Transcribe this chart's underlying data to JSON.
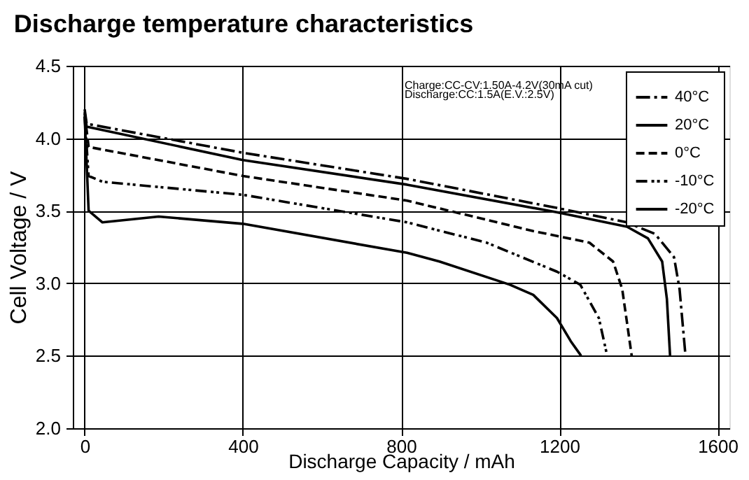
{
  "chart_data": {
    "type": "line",
    "title": "Discharge temperature characteristics",
    "xlabel": "Discharge Capacity  /  mAh",
    "ylabel": "Cell Voltage  /  V",
    "annotations": [
      "Charge:CC-CV:1.50A-4.2V(30mA cut)",
      "Discharge:CC:1.5A(E.V.:2.5V)"
    ],
    "xlim": [
      -30,
      1630
    ],
    "xticks": [
      0,
      400,
      800,
      1200,
      1600
    ],
    "ylim": [
      2.0,
      4.5
    ],
    "yticks": [
      {
        "value": 2,
        "label": "2.0"
      },
      2.5,
      {
        "value": 3,
        "label": "3.0"
      },
      3.5,
      {
        "value": 4,
        "label": "4.0"
      },
      4.5
    ],
    "grid": true,
    "legend": "top right",
    "marker": "none",
    "series": [
      {
        "name": "40°C",
        "color": "#000000",
        "line_style": "dashdot",
        "x": [
          0,
          5,
          400,
          815,
          1193,
          1371,
          1442,
          1490,
          1504,
          1519
        ],
        "values": [
          4.2,
          4.1,
          3.9,
          3.72,
          3.52,
          3.42,
          3.34,
          3.18,
          2.96,
          2.5
        ]
      },
      {
        "name": "20°C",
        "color": "#000000",
        "line_style": "solid",
        "x": [
          0,
          5,
          400,
          815,
          1193,
          1371,
          1424,
          1460,
          1472,
          1480
        ],
        "values": [
          4.18,
          4.08,
          3.85,
          3.68,
          3.49,
          3.39,
          3.31,
          3.15,
          2.89,
          2.5
        ]
      },
      {
        "name": "0°C",
        "color": "#000000",
        "line_style": "dashed",
        "x": [
          0,
          10,
          400,
          815,
          1134,
          1276,
          1336,
          1359,
          1383
        ],
        "values": [
          4.17,
          3.94,
          3.74,
          3.57,
          3.36,
          3.28,
          3.15,
          2.96,
          2.5
        ]
      },
      {
        "name": "-10°C",
        "color": "#000000",
        "line_style": "dashdotdot",
        "x": [
          0,
          10,
          45,
          400,
          815,
          1016,
          1194,
          1253,
          1300,
          1321
        ],
        "values": [
          4.15,
          3.74,
          3.7,
          3.61,
          3.42,
          3.28,
          3.08,
          2.99,
          2.76,
          2.5
        ]
      },
      {
        "name": "-20°C",
        "color": "#000000",
        "line_style": "solid",
        "x": [
          0,
          10,
          45,
          187,
          400,
          815,
          897,
          1075,
          1134,
          1194,
          1229,
          1255
        ],
        "values": [
          4.15,
          3.5,
          3.42,
          3.46,
          3.41,
          3.21,
          3.15,
          2.99,
          2.92,
          2.76,
          2.6,
          2.5
        ]
      }
    ]
  }
}
